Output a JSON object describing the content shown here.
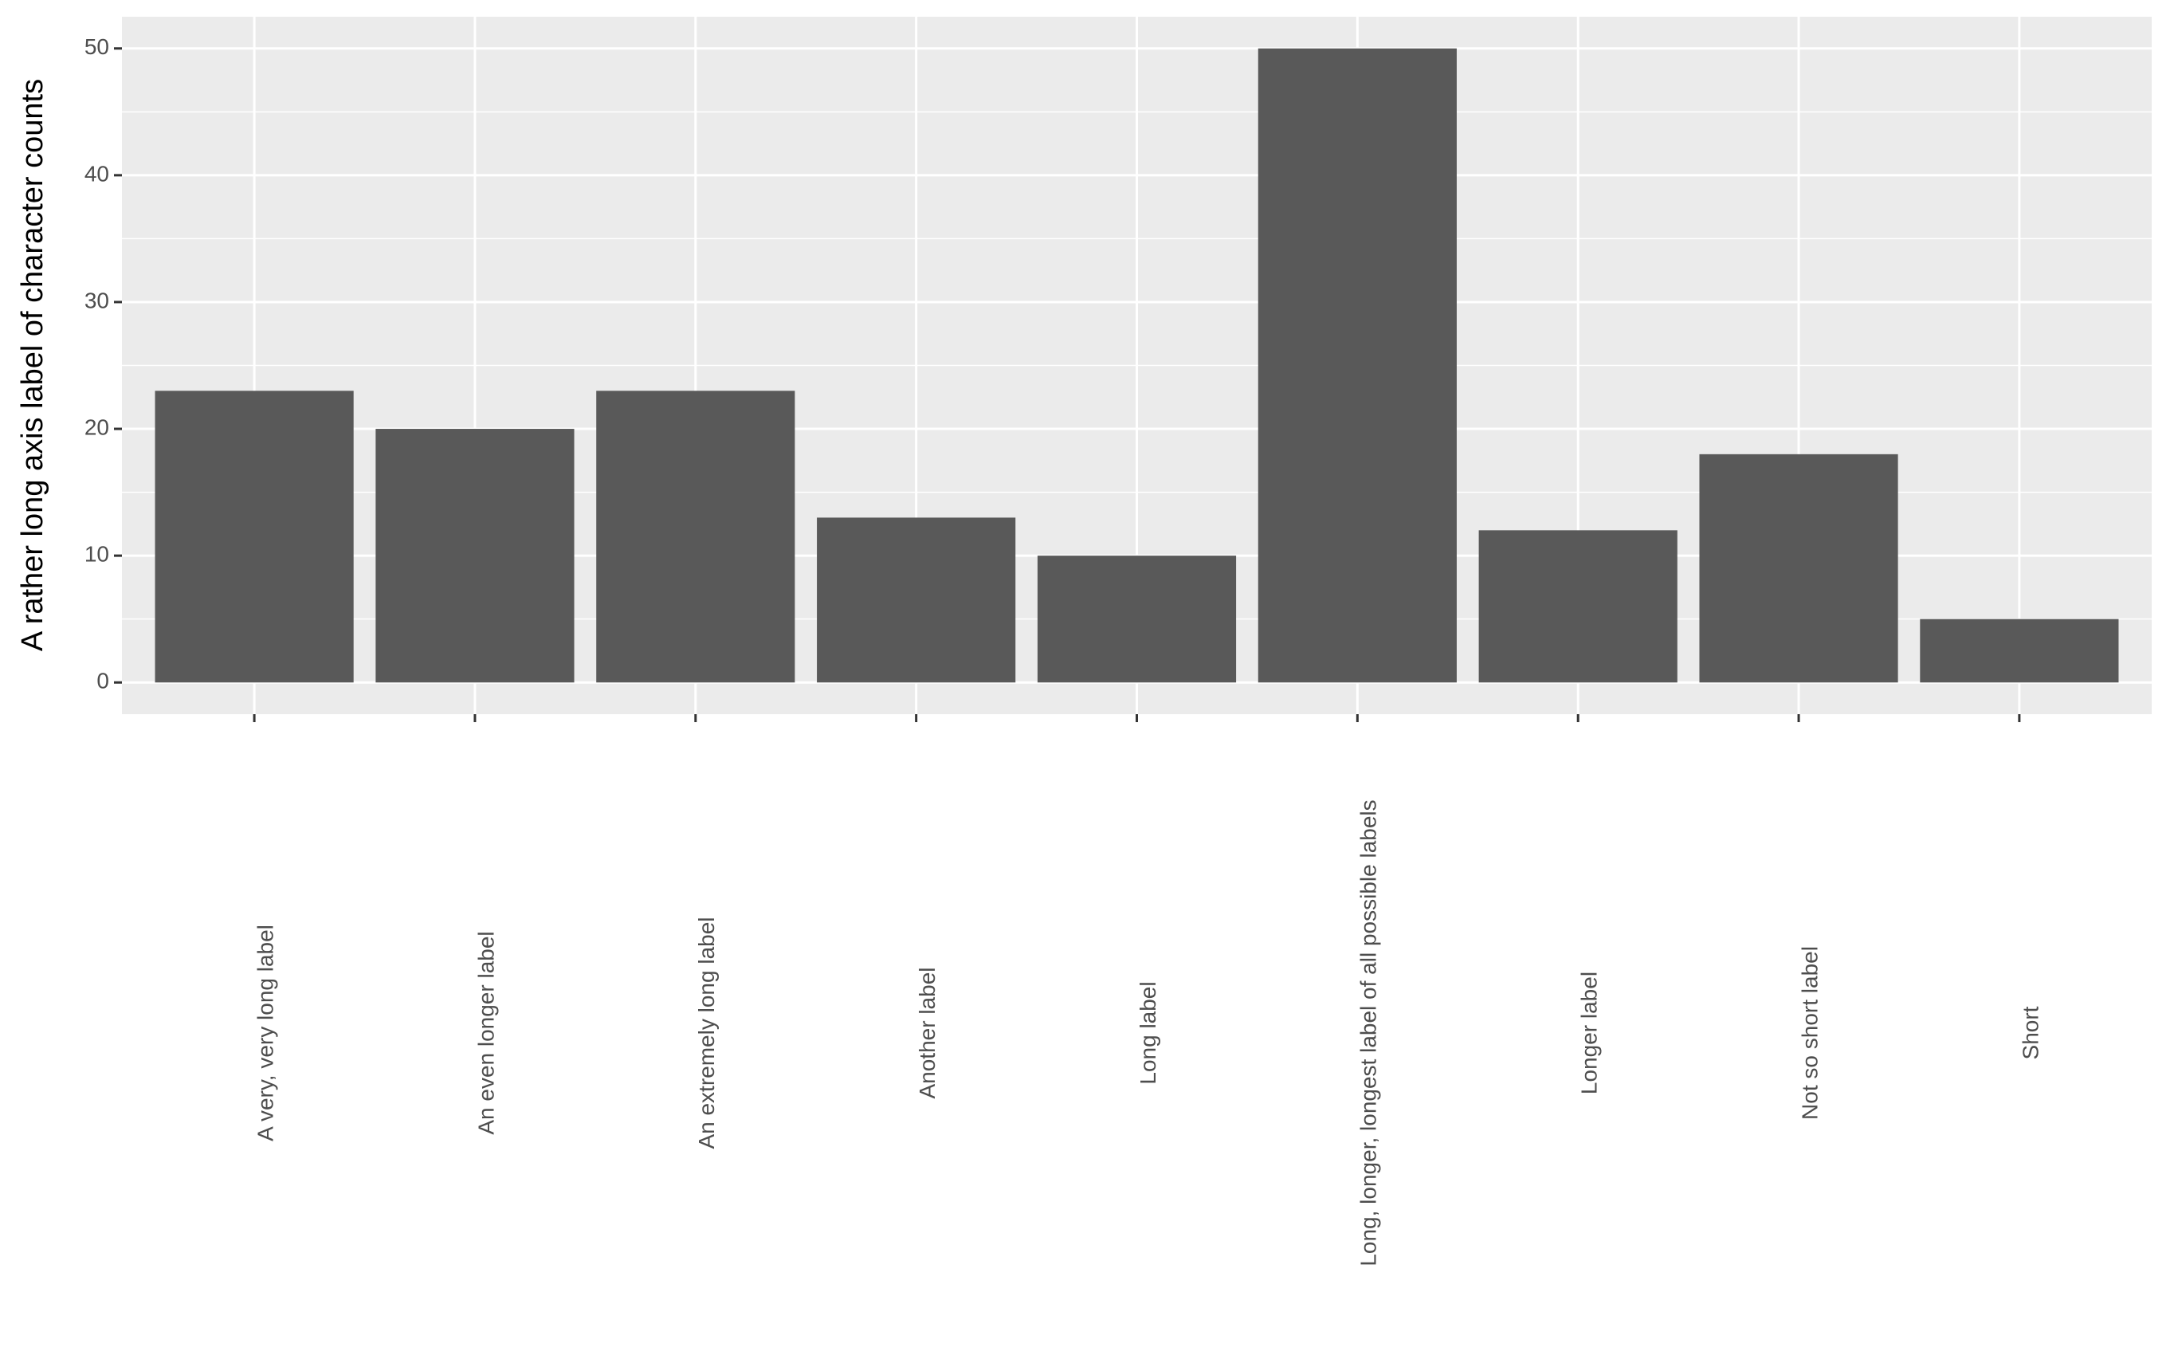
{
  "chart_data": {
    "type": "bar",
    "y_label": "A rather long axis label of character counts",
    "categories": [
      "A very, very long label",
      "An even longer label",
      "An extremely long label",
      "Another label",
      "Long label",
      "Long, longer, longest label of all possible labels",
      "Longer label",
      "Not so short label",
      "Short"
    ],
    "values": [
      23,
      20,
      23,
      13,
      10,
      50,
      12,
      18,
      5
    ],
    "color": "#595959",
    "ylim": [
      -2.5,
      52.5
    ],
    "yticks": [
      0,
      10,
      20,
      30,
      40,
      50
    ],
    "grid": true
  }
}
